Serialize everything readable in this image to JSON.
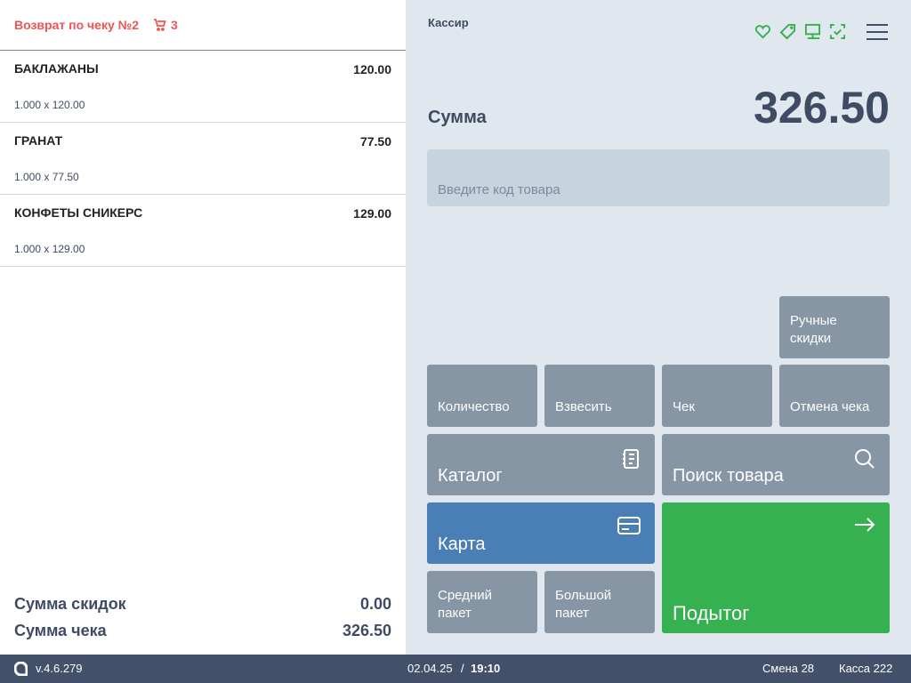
{
  "receipt": {
    "title": "Возврат по чеку №2",
    "cart_count": "3",
    "items": [
      {
        "name": "БАКЛАЖАНЫ",
        "price": "120.00",
        "qty": "1.000 x 120.00"
      },
      {
        "name": "ГРАНАТ",
        "price": "77.50",
        "qty": "1.000 x 77.50"
      },
      {
        "name": "КОНФЕТЫ СНИКЕРС",
        "price": "129.00",
        "qty": "1.000 x 129.00"
      }
    ],
    "discount_label": "Сумма скидок",
    "discount_value": "0.00",
    "total_label": "Сумма чека",
    "total_value": "326.50"
  },
  "panel": {
    "role": "Кассир",
    "sum_label": "Сумма",
    "sum_value": "326.50",
    "code_placeholder": "Введите код товара",
    "buttons": {
      "manual_discounts": "Ручные скидки",
      "quantity": "Количество",
      "weigh": "Взвесить",
      "check": "Чек",
      "cancel_check": "Отмена чека",
      "catalog": "Каталог",
      "search": "Поиск товара",
      "card": "Карта",
      "medium_bag": "Средний пакет",
      "large_bag": "Большой пакет",
      "subtotal": "Подытог"
    }
  },
  "colors": {
    "accent_green": "#35b14f",
    "card_blue": "#4a7fb5",
    "return_red": "#f05454",
    "button_gray": "#8796a4"
  },
  "footer": {
    "version": "v.4.6.279",
    "date": "02.04.25",
    "separator": "/",
    "time": "19:10",
    "shift": "Смена 28",
    "register": "Касса 222"
  }
}
